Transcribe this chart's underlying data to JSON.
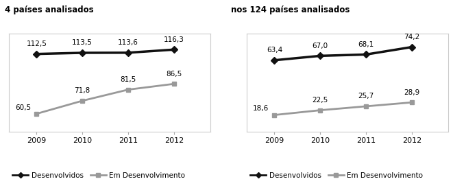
{
  "years": [
    2009,
    2010,
    2011,
    2012
  ],
  "left": {
    "desenvolvidos": [
      112.5,
      113.5,
      113.6,
      116.3
    ],
    "em_desenvolvimento": [
      60.5,
      71.8,
      81.5,
      86.5
    ]
  },
  "right": {
    "desenvolvidos": [
      63.4,
      67.0,
      68.1,
      74.2
    ],
    "em_desenvolvimento": [
      18.6,
      22.5,
      25.7,
      28.9
    ]
  },
  "left_ylim": [
    45,
    130
  ],
  "right_ylim": [
    5,
    85
  ],
  "color_dev": "#111111",
  "color_emdev": "#999999",
  "legend_dev": "Desenvolvidos",
  "legend_emdev": "Em Desenvolvimento",
  "top_label_left": "4 países analisados",
  "top_label_right": "nos 124 países analisados",
  "background_color": "#ffffff",
  "border_color": "#cccccc",
  "spine_color": "#aaaaaa"
}
